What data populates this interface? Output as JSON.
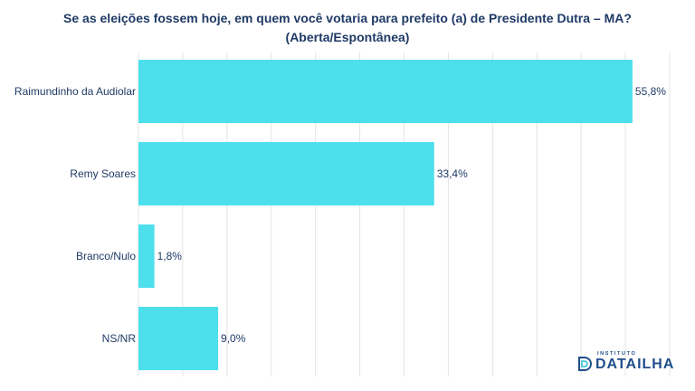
{
  "chart_data": {
    "type": "bar",
    "orientation": "horizontal",
    "title": [
      "Se as eleições fossem hoje, em quem você votaria para prefeito (a) de Presidente Dutra – MA?",
      "(Aberta/Espontânea)"
    ],
    "categories": [
      "Raimundinho da Audiolar",
      "Remy Soares",
      "Branco/Nulo",
      "NS/NR"
    ],
    "values": [
      55.8,
      33.4,
      1.8,
      9.0
    ],
    "value_labels": [
      "55,8%",
      "33,4%",
      "1,8%",
      "9,0%"
    ],
    "xlim": [
      0,
      60
    ],
    "grid": "vertical",
    "bar_color": "#4ddfec",
    "text_color": "#1f3a66",
    "grid_color": "#e4e4e4"
  },
  "logo": {
    "prefix": "INSTITUTO",
    "name": "DATAILHA",
    "color": "#1f4e8a",
    "icon": "datailha-logo-icon"
  }
}
